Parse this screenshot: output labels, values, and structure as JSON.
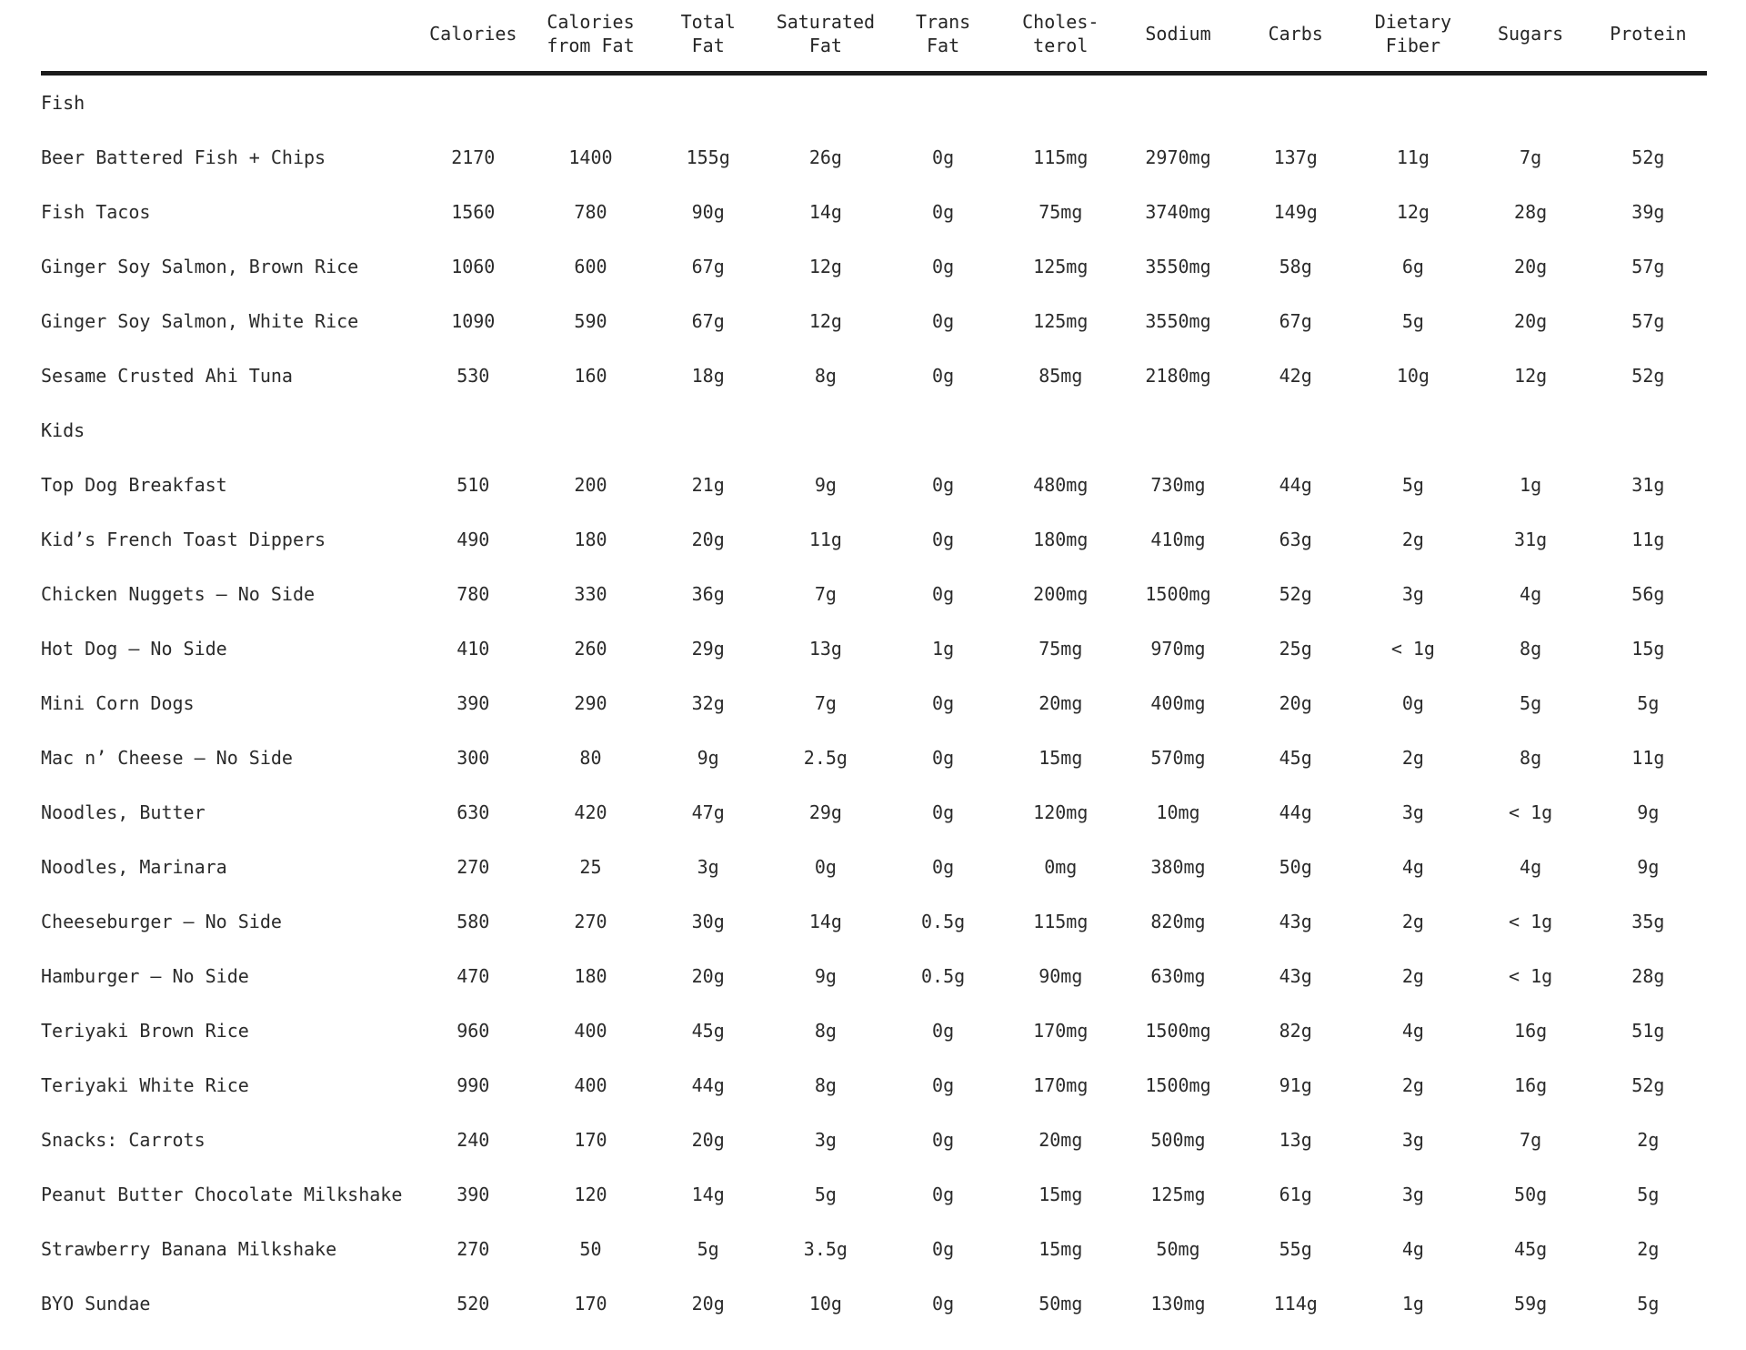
{
  "page": {
    "background_color": "#ffffff",
    "text_color": "#2b2b2b",
    "rule_color": "#1c1c1c"
  },
  "table": {
    "columns": [
      {
        "label": "Calories"
      },
      {
        "label": "Calories\nfrom Fat"
      },
      {
        "label": "Total\nFat"
      },
      {
        "label": "Saturated\nFat"
      },
      {
        "label": "Trans\nFat"
      },
      {
        "label": "Choles-\nterol"
      },
      {
        "label": "Sodium"
      },
      {
        "label": "Carbs"
      },
      {
        "label": "Dietary\nFiber"
      },
      {
        "label": "Sugars"
      },
      {
        "label": "Protein"
      }
    ],
    "sections": [
      {
        "title": "Fish",
        "rows": [
          {
            "name": "Beer Battered Fish + Chips",
            "values": [
              "2170",
              "1400",
              "155g",
              "26g",
              "0g",
              "115mg",
              "2970mg",
              "137g",
              "11g",
              "7g",
              "52g"
            ]
          },
          {
            "name": "Fish Tacos",
            "values": [
              "1560",
              "780",
              "90g",
              "14g",
              "0g",
              "75mg",
              "3740mg",
              "149g",
              "12g",
              "28g",
              "39g"
            ]
          },
          {
            "name": "Ginger Soy Salmon, Brown Rice",
            "values": [
              "1060",
              "600",
              "67g",
              "12g",
              "0g",
              "125mg",
              "3550mg",
              "58g",
              "6g",
              "20g",
              "57g"
            ]
          },
          {
            "name": "Ginger Soy Salmon, White Rice",
            "values": [
              "1090",
              "590",
              "67g",
              "12g",
              "0g",
              "125mg",
              "3550mg",
              "67g",
              "5g",
              "20g",
              "57g"
            ]
          },
          {
            "name": "Sesame Crusted Ahi Tuna",
            "values": [
              "530",
              "160",
              "18g",
              "8g",
              "0g",
              "85mg",
              "2180mg",
              "42g",
              "10g",
              "12g",
              "52g"
            ]
          }
        ]
      },
      {
        "title": "Kids",
        "rows": [
          {
            "name": "Top Dog Breakfast",
            "values": [
              "510",
              "200",
              "21g",
              "9g",
              "0g",
              "480mg",
              "730mg",
              "44g",
              "5g",
              "1g",
              "31g"
            ]
          },
          {
            "name": "Kid’s French Toast Dippers",
            "values": [
              "490",
              "180",
              "20g",
              "11g",
              "0g",
              "180mg",
              "410mg",
              "63g",
              "2g",
              "31g",
              "11g"
            ]
          },
          {
            "name": "Chicken Nuggets – No Side",
            "values": [
              "780",
              "330",
              "36g",
              "7g",
              "0g",
              "200mg",
              "1500mg",
              "52g",
              "3g",
              "4g",
              "56g"
            ]
          },
          {
            "name": "Hot Dog – No Side",
            "values": [
              "410",
              "260",
              "29g",
              "13g",
              "1g",
              "75mg",
              "970mg",
              "25g",
              "< 1g",
              "8g",
              "15g"
            ]
          },
          {
            "name": "Mini Corn Dogs",
            "values": [
              "390",
              "290",
              "32g",
              "7g",
              "0g",
              "20mg",
              "400mg",
              "20g",
              "0g",
              "5g",
              "5g"
            ]
          },
          {
            "name": "Mac n’ Cheese – No Side",
            "values": [
              "300",
              "80",
              "9g",
              "2.5g",
              "0g",
              "15mg",
              "570mg",
              "45g",
              "2g",
              "8g",
              "11g"
            ]
          },
          {
            "name": "Noodles, Butter",
            "values": [
              "630",
              "420",
              "47g",
              "29g",
              "0g",
              "120mg",
              "10mg",
              "44g",
              "3g",
              "< 1g",
              "9g"
            ]
          },
          {
            "name": "Noodles, Marinara",
            "values": [
              "270",
              "25",
              "3g",
              "0g",
              "0g",
              "0mg",
              "380mg",
              "50g",
              "4g",
              "4g",
              "9g"
            ]
          },
          {
            "name": "Cheeseburger – No Side",
            "values": [
              "580",
              "270",
              "30g",
              "14g",
              "0.5g",
              "115mg",
              "820mg",
              "43g",
              "2g",
              "< 1g",
              "35g"
            ]
          },
          {
            "name": "Hamburger – No Side",
            "values": [
              "470",
              "180",
              "20g",
              "9g",
              "0.5g",
              "90mg",
              "630mg",
              "43g",
              "2g",
              "< 1g",
              "28g"
            ]
          },
          {
            "name": "Teriyaki Brown Rice",
            "values": [
              "960",
              "400",
              "45g",
              "8g",
              "0g",
              "170mg",
              "1500mg",
              "82g",
              "4g",
              "16g",
              "51g"
            ]
          },
          {
            "name": "Teriyaki White Rice",
            "values": [
              "990",
              "400",
              "44g",
              "8g",
              "0g",
              "170mg",
              "1500mg",
              "91g",
              "2g",
              "16g",
              "52g"
            ]
          },
          {
            "name": "Snacks: Carrots",
            "values": [
              "240",
              "170",
              "20g",
              "3g",
              "0g",
              "20mg",
              "500mg",
              "13g",
              "3g",
              "7g",
              "2g"
            ]
          },
          {
            "name": "Peanut Butter Chocolate Milkshake",
            "values": [
              "390",
              "120",
              "14g",
              "5g",
              "0g",
              "15mg",
              "125mg",
              "61g",
              "3g",
              "50g",
              "5g"
            ]
          },
          {
            "name": "Strawberry Banana Milkshake",
            "values": [
              "270",
              "50",
              "5g",
              "3.5g",
              "0g",
              "15mg",
              "50mg",
              "55g",
              "4g",
              "45g",
              "2g"
            ]
          },
          {
            "name": "BYO Sundae",
            "values": [
              "520",
              "170",
              "20g",
              "10g",
              "0g",
              "50mg",
              "130mg",
              "114g",
              "1g",
              "59g",
              "5g"
            ]
          }
        ]
      }
    ]
  }
}
